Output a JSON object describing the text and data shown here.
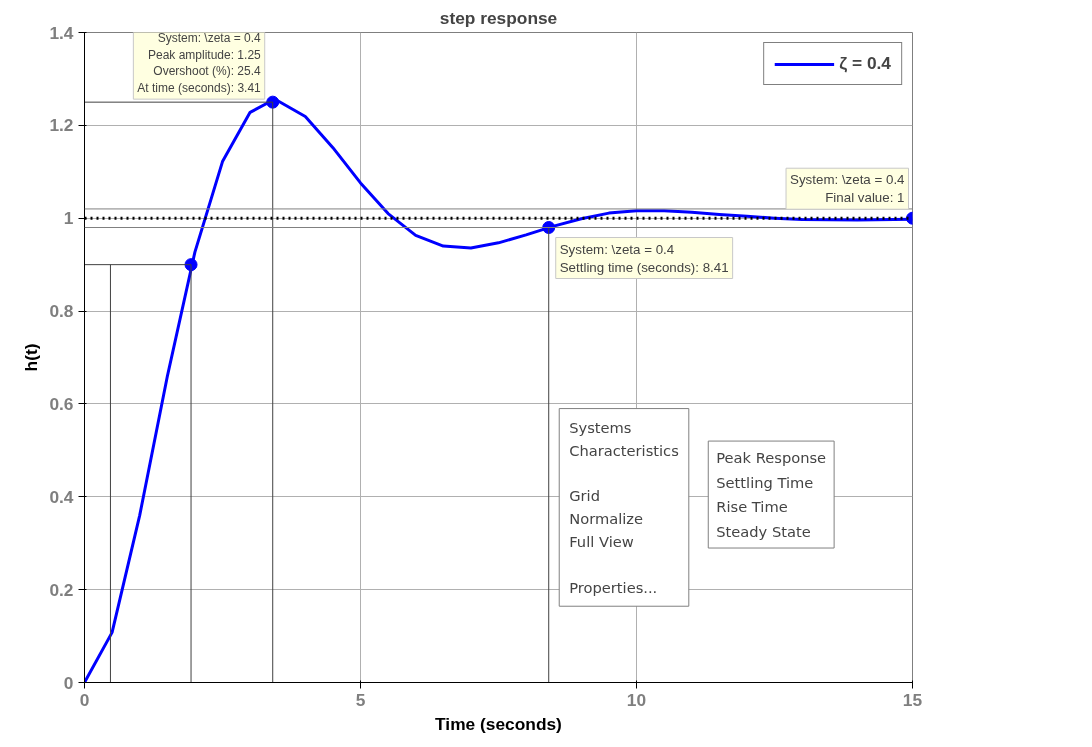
{
  "chart_data": {
    "type": "line",
    "title": "step response",
    "xlabel": "Time (seconds)",
    "ylabel": "h(t)",
    "xlim": [
      0,
      15
    ],
    "xticks": [
      0,
      5,
      10,
      15
    ],
    "ylim": [
      0,
      1.4
    ],
    "yticks": [
      0,
      0.2,
      0.4,
      0.6,
      0.8,
      1,
      1.2,
      1.4
    ],
    "grid": true,
    "legend": "top right",
    "line_style": "solid",
    "series": [
      {
        "name": "ζ = 0.4",
        "color": "#0000ff",
        "marker": "none",
        "x": [
          0,
          0.5,
          1,
          1.5,
          2,
          2.5,
          3,
          3.41,
          3.5,
          4,
          4.5,
          5,
          5.5,
          6,
          6.5,
          7,
          7.5,
          8,
          8.5,
          9,
          9.5,
          10,
          10.5,
          11,
          11.5,
          12,
          12.5,
          13,
          14,
          15
        ],
        "values": [
          0,
          0.108,
          0.36,
          0.659,
          0.927,
          1.122,
          1.228,
          1.254,
          1.253,
          1.219,
          1.152,
          1.076,
          1.01,
          0.963,
          0.94,
          0.936,
          0.947,
          0.964,
          0.983,
          0.999,
          1.011,
          1.016,
          1.016,
          1.013,
          1.008,
          1.004,
          1.0,
          0.997,
          0.996,
          0.998
        ]
      },
      {
        "type": "scatter",
        "color": "#0000ff",
        "marker": "circle",
        "x": [
          1.93,
          3.41,
          8.41,
          15
        ],
        "values": [
          0.9,
          1.25,
          0.98,
          1
        ]
      },
      {
        "color": "#404040",
        "marker": "none",
        "x": [
          0.47,
          0.47
        ],
        "values": [
          0,
          0.9
        ]
      },
      {
        "color": "#404040",
        "marker": "none",
        "x": [
          0,
          1.93,
          1.93
        ],
        "values": [
          0.9,
          0.9,
          0
        ]
      },
      {
        "color": "#404040",
        "marker": "none",
        "x": [
          0,
          3.41,
          3.41
        ],
        "values": [
          1.25,
          1.25,
          0
        ]
      },
      {
        "color": "#404040",
        "marker": "none",
        "x": [
          8.41,
          8.41
        ],
        "values": [
          0,
          0.98
        ]
      }
    ],
    "ref_lines": [
      {
        "axis": "y",
        "value": 1,
        "color": "#000000",
        "line_style": "dotted"
      },
      {
        "axis": "y",
        "value": 0.98,
        "color": "#808080",
        "line_style": "solid"
      },
      {
        "axis": "y",
        "value": 1.02,
        "color": "#808080",
        "line_style": "solid"
      }
    ],
    "annotations": [
      {
        "text": "System: \\zeta = 0.4\nPeak amplitude: 1.25\nOvershoot (%): 25.4\nAt time (seconds): 3.41",
        "x": 3.41,
        "y": 1.25
      },
      {
        "text": "System: \\zeta = 0.4\nFinal value: 1",
        "x": 15,
        "y": 1
      },
      {
        "text": "System: \\zeta = 0.4\nSettling time (seconds): 8.41",
        "x": 8.41,
        "y": 0.98
      },
      "Systems",
      "Characteristics",
      "Grid",
      "Normalize",
      "Full View",
      "Properties...",
      "Peak Response",
      "Settling Time",
      "Rise Time",
      "Steady State"
    ]
  }
}
